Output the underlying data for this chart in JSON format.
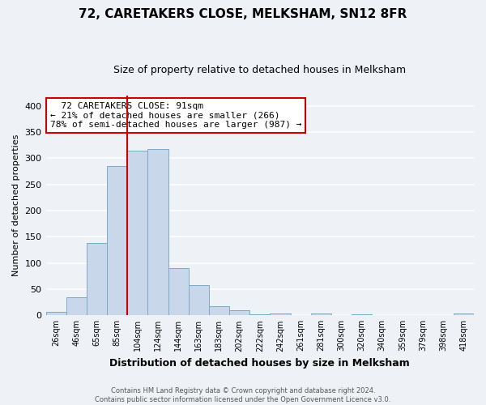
{
  "title": "72, CARETAKERS CLOSE, MELKSHAM, SN12 8FR",
  "subtitle": "Size of property relative to detached houses in Melksham",
  "xlabel": "Distribution of detached houses by size in Melksham",
  "ylabel": "Number of detached properties",
  "bar_labels": [
    "26sqm",
    "46sqm",
    "65sqm",
    "85sqm",
    "104sqm",
    "124sqm",
    "144sqm",
    "163sqm",
    "183sqm",
    "202sqm",
    "222sqm",
    "242sqm",
    "261sqm",
    "281sqm",
    "300sqm",
    "320sqm",
    "340sqm",
    "359sqm",
    "379sqm",
    "398sqm",
    "418sqm"
  ],
  "bar_heights": [
    7,
    35,
    138,
    285,
    315,
    318,
    90,
    57,
    18,
    10,
    2,
    3,
    0,
    4,
    0,
    2,
    0,
    1,
    0,
    0,
    3
  ],
  "bar_color": "#c8d8ea",
  "bar_edgecolor": "#7aaac8",
  "vline_x": 3.5,
  "vline_color": "#cc0000",
  "ylim": [
    0,
    420
  ],
  "yticks": [
    0,
    50,
    100,
    150,
    200,
    250,
    300,
    350,
    400
  ],
  "annotation_title": "72 CARETAKERS CLOSE: 91sqm",
  "annotation_line1": "← 21% of detached houses are smaller (266)",
  "annotation_line2": "78% of semi-detached houses are larger (987) →",
  "annotation_box_facecolor": "#ffffff",
  "annotation_box_edgecolor": "#cc0000",
  "footer_line1": "Contains HM Land Registry data © Crown copyright and database right 2024.",
  "footer_line2": "Contains public sector information licensed under the Open Government Licence v3.0.",
  "bg_color": "#eef2f6",
  "grid_color": "#ffffff",
  "title_fontsize": 11,
  "subtitle_fontsize": 9
}
